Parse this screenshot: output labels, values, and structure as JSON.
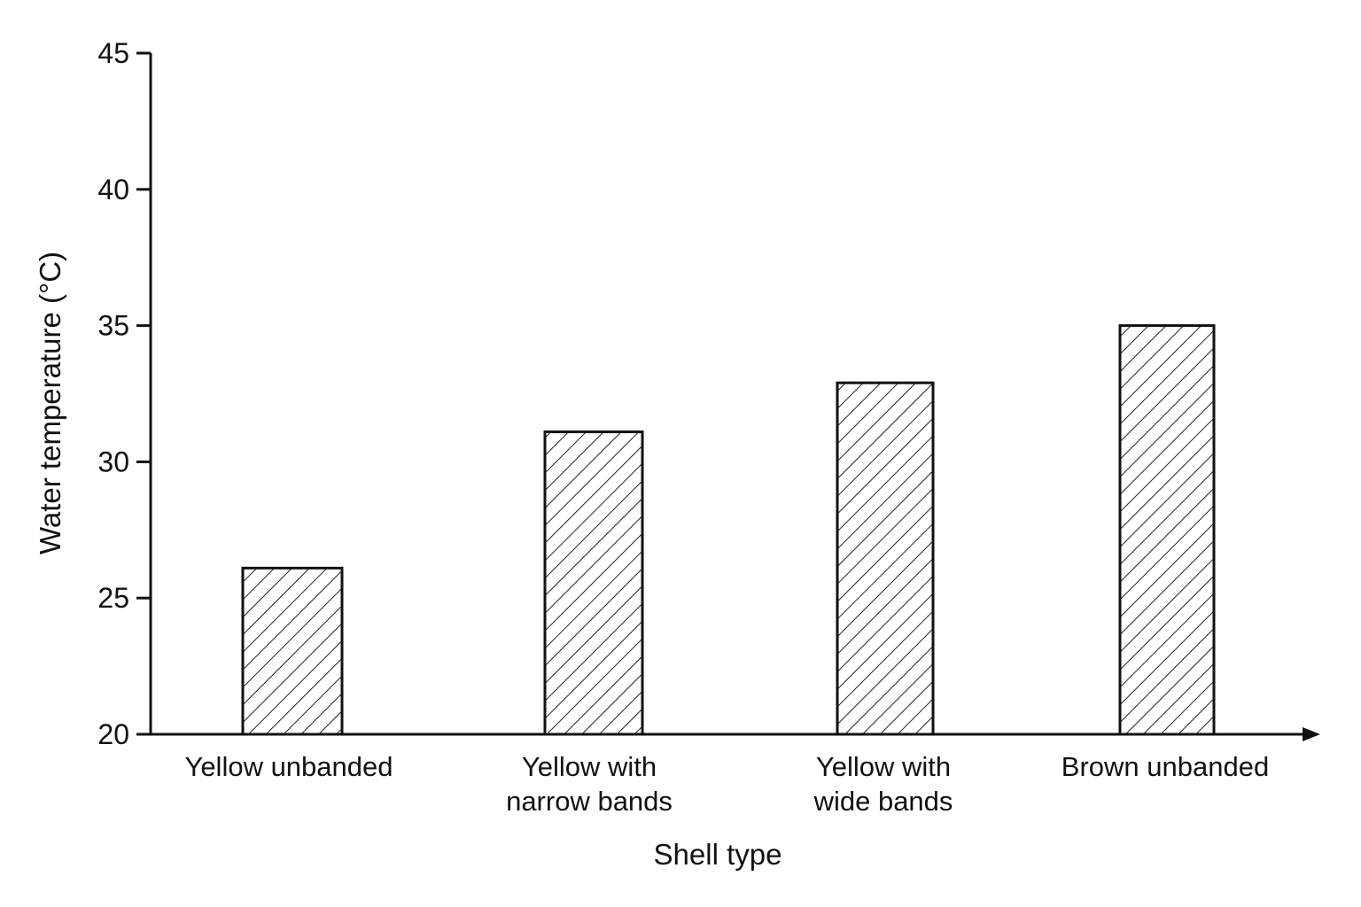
{
  "chart_data": {
    "type": "bar",
    "categories": [
      [
        "Yellow unbanded"
      ],
      [
        "Yellow with",
        "narrow bands"
      ],
      [
        "Yellow with",
        "wide bands"
      ],
      [
        "Brown unbanded"
      ]
    ],
    "values": [
      26.1,
      31.1,
      32.9,
      35.0
    ],
    "xlabel": "Shell type",
    "ylabel": "Water temperature (°C)",
    "ylim": [
      20,
      45
    ],
    "yticks": [
      20,
      25,
      30,
      35,
      40,
      45
    ],
    "grid": false,
    "bar_fill": "hatched",
    "colors": {
      "axis": "#111111",
      "bar_stroke": "#111111",
      "hatch": "#222222",
      "background": "#ffffff"
    }
  }
}
